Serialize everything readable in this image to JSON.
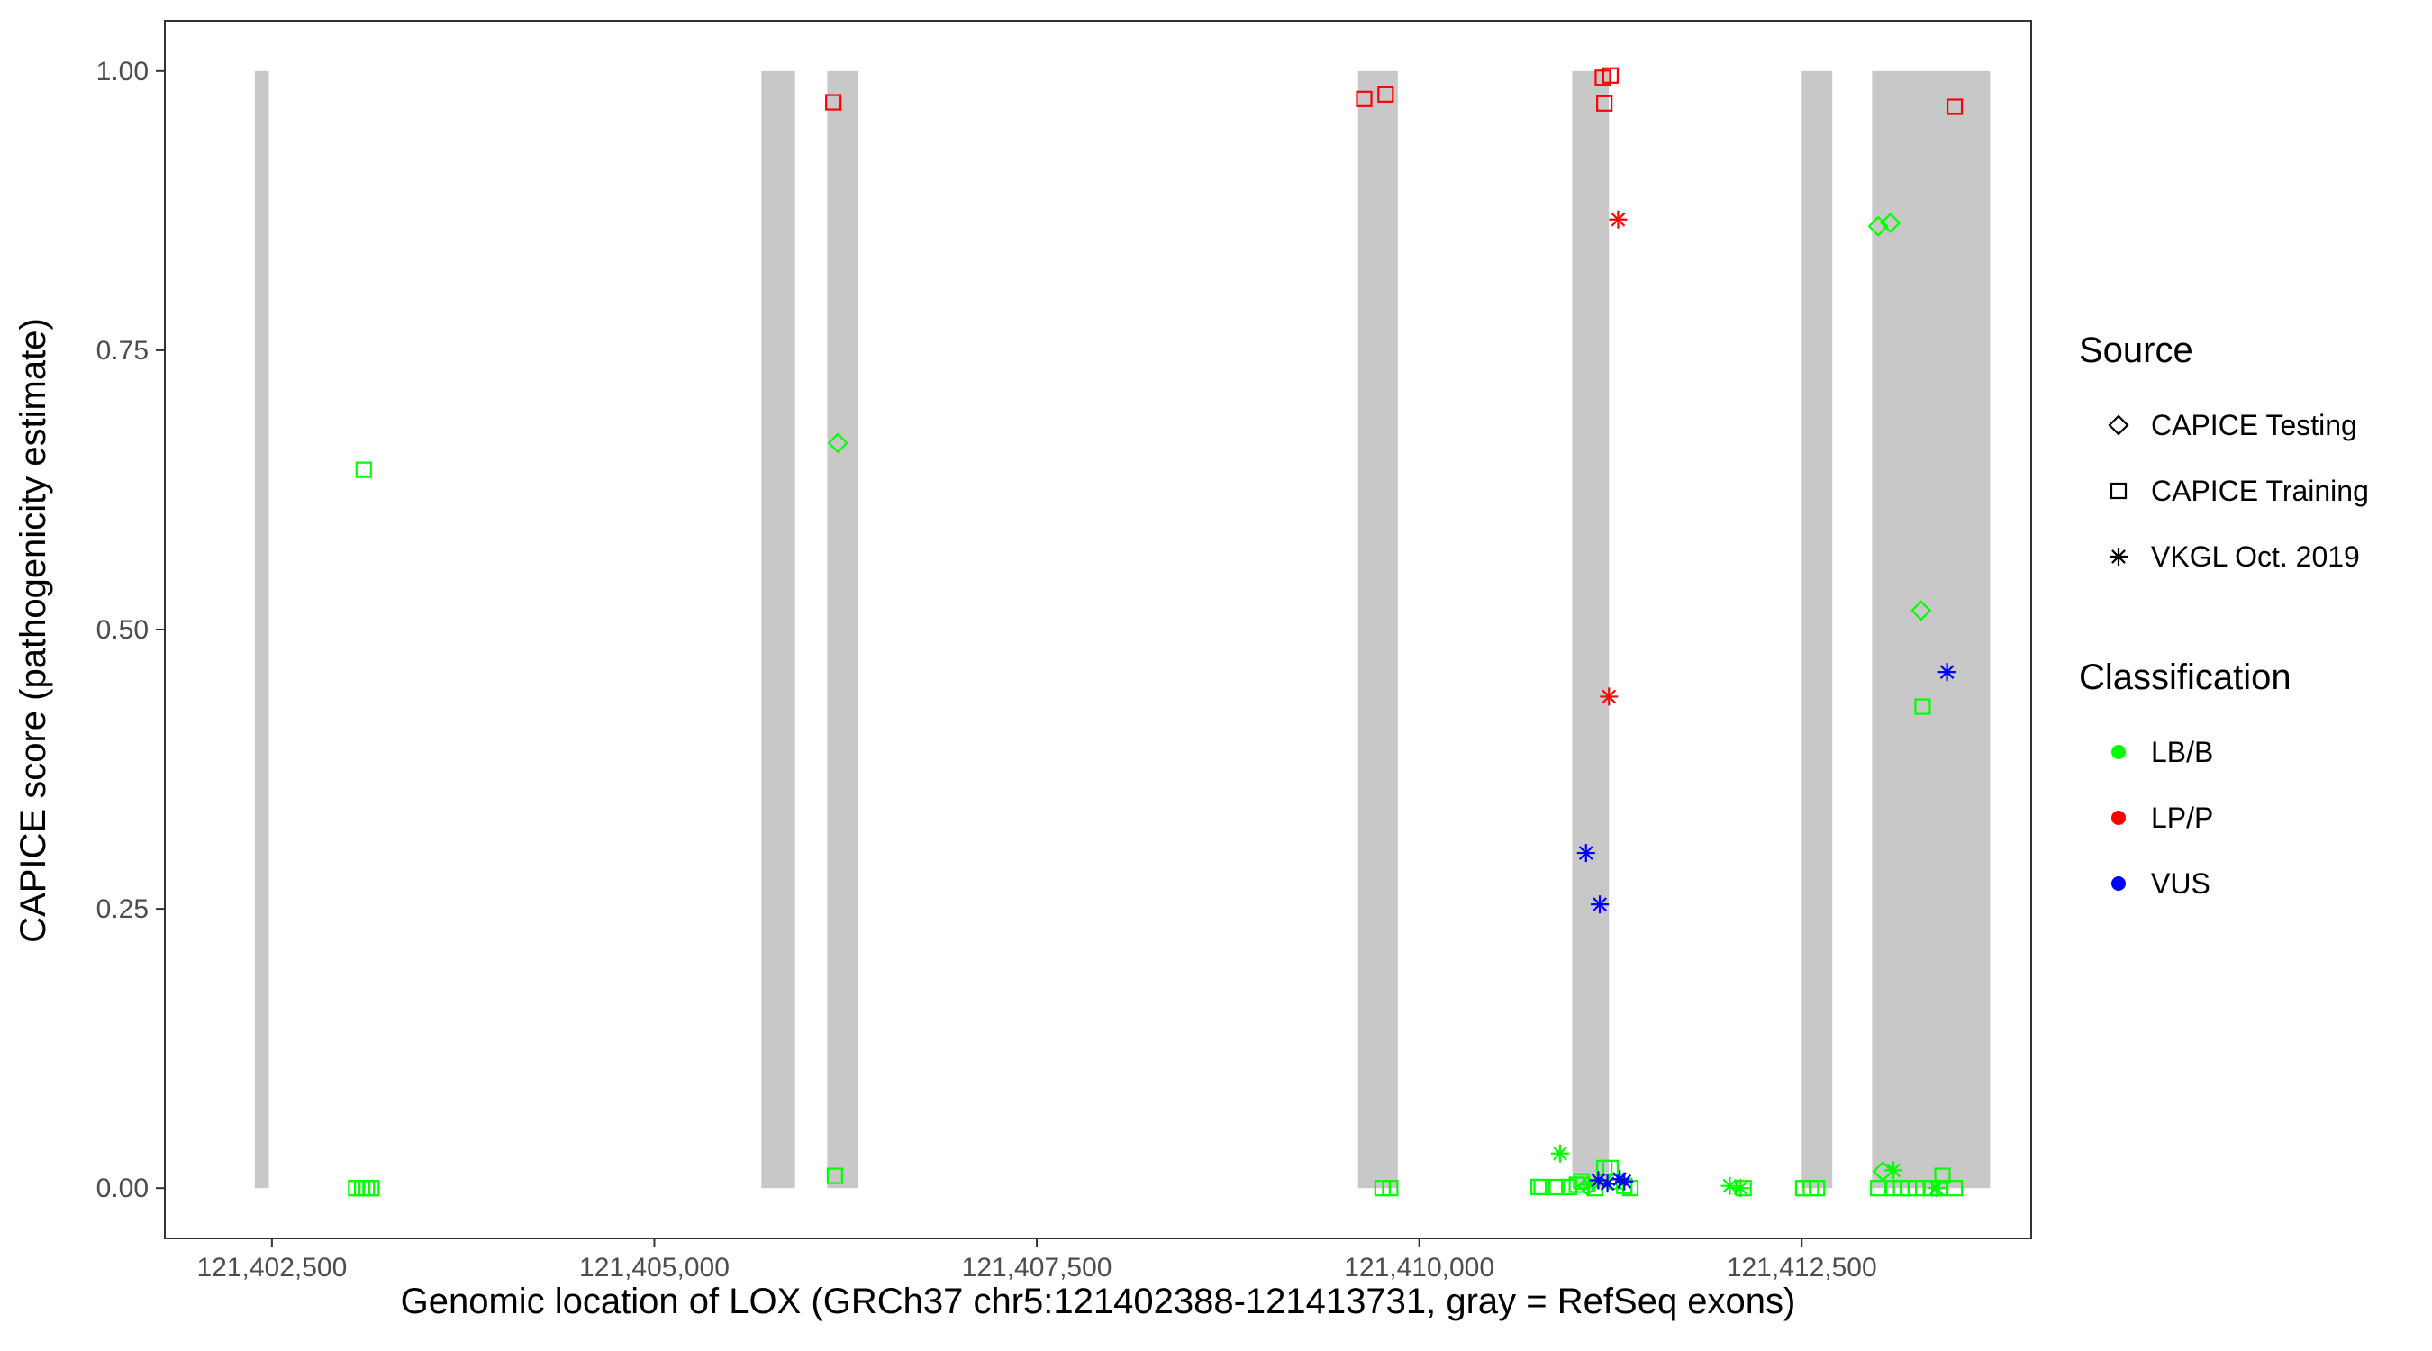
{
  "chart_data": {
    "type": "scatter",
    "title": "",
    "xlabel": "Genomic location of LOX (GRCh37 chr5:121402388-121413731, gray = RefSeq exons)",
    "ylabel": "CAPICE score (pathogenicity estimate)",
    "xlim": [
      121401800,
      121414000
    ],
    "ylim": [
      -0.045,
      1.045
    ],
    "x_ticks": [
      121402500,
      121405000,
      121407500,
      121410000,
      121412500
    ],
    "x_tick_labels": [
      "121,402,500",
      "121,405,000",
      "121,407,500",
      "121,410,000",
      "121,412,500"
    ],
    "y_ticks": [
      0,
      0.25,
      0.5,
      0.75,
      1.0
    ],
    "y_tick_labels": [
      "0.00",
      "0.25",
      "0.50",
      "0.75",
      "1.00"
    ],
    "grid": false,
    "exons": [
      [
        121402388,
        121402480
      ],
      [
        121405700,
        121405920
      ],
      [
        121406130,
        121406330
      ],
      [
        121409600,
        121409860
      ],
      [
        121411000,
        121411240
      ],
      [
        121412500,
        121412700
      ],
      [
        121412960,
        121413731
      ]
    ],
    "exon_color": "#c8c8c8",
    "legends": {
      "source": {
        "title": "Source",
        "items": [
          {
            "label": "CAPICE Testing",
            "shape": "diamond"
          },
          {
            "label": "CAPICE Training",
            "shape": "square"
          },
          {
            "label": "VKGL Oct. 2019",
            "shape": "asterisk"
          }
        ]
      },
      "classification": {
        "title": "Classification",
        "items": [
          {
            "label": "LB/B",
            "color": "#00ff00"
          },
          {
            "label": "LP/P",
            "color": "#ff0000"
          },
          {
            "label": "VUS",
            "color": "#0000ff"
          }
        ]
      }
    },
    "points": [
      {
        "x": 121403100,
        "y": 0.643,
        "shape": "square",
        "class": "LB/B"
      },
      {
        "x": 121403050,
        "y": 0.0,
        "shape": "square",
        "class": "LB/B"
      },
      {
        "x": 121403090,
        "y": 0.0,
        "shape": "square",
        "class": "LB/B"
      },
      {
        "x": 121403120,
        "y": 0.0,
        "shape": "square",
        "class": "LB/B"
      },
      {
        "x": 121403150,
        "y": 0.0,
        "shape": "square",
        "class": "LB/B"
      },
      {
        "x": 121406170,
        "y": 0.972,
        "shape": "square",
        "class": "LP/P"
      },
      {
        "x": 121406200,
        "y": 0.667,
        "shape": "diamond",
        "class": "LB/B"
      },
      {
        "x": 121406180,
        "y": 0.011,
        "shape": "square",
        "class": "LB/B"
      },
      {
        "x": 121409640,
        "y": 0.975,
        "shape": "square",
        "class": "LP/P"
      },
      {
        "x": 121409780,
        "y": 0.979,
        "shape": "square",
        "class": "LP/P"
      },
      {
        "x": 121409760,
        "y": 0.0,
        "shape": "square",
        "class": "LB/B"
      },
      {
        "x": 121409810,
        "y": 0.0,
        "shape": "square",
        "class": "LB/B"
      },
      {
        "x": 121411200,
        "y": 0.994,
        "shape": "square",
        "class": "LP/P"
      },
      {
        "x": 121411250,
        "y": 0.996,
        "shape": "square",
        "class": "LP/P"
      },
      {
        "x": 121411210,
        "y": 0.971,
        "shape": "square",
        "class": "LP/P"
      },
      {
        "x": 121411300,
        "y": 0.867,
        "shape": "asterisk",
        "class": "LP/P"
      },
      {
        "x": 121411240,
        "y": 0.44,
        "shape": "asterisk",
        "class": "LP/P"
      },
      {
        "x": 121411090,
        "y": 0.3,
        "shape": "asterisk",
        "class": "VUS"
      },
      {
        "x": 121411180,
        "y": 0.254,
        "shape": "asterisk",
        "class": "VUS"
      },
      {
        "x": 121410920,
        "y": 0.031,
        "shape": "asterisk",
        "class": "LB/B"
      },
      {
        "x": 121410780,
        "y": 0.001,
        "shape": "square",
        "class": "LB/B"
      },
      {
        "x": 121410800,
        "y": 0.001,
        "shape": "square",
        "class": "LB/B"
      },
      {
        "x": 121410900,
        "y": 0.001,
        "shape": "square",
        "class": "LB/B"
      },
      {
        "x": 121410980,
        "y": 0.001,
        "shape": "square",
        "class": "LB/B"
      },
      {
        "x": 121411030,
        "y": 0.003,
        "shape": "square",
        "class": "LB/B"
      },
      {
        "x": 121411060,
        "y": 0.006,
        "shape": "square",
        "class": "LB/B"
      },
      {
        "x": 121411210,
        "y": 0.018,
        "shape": "square",
        "class": "LB/B"
      },
      {
        "x": 121411250,
        "y": 0.018,
        "shape": "square",
        "class": "LB/B"
      },
      {
        "x": 121411290,
        "y": 0.006,
        "shape": "square",
        "class": "LB/B"
      },
      {
        "x": 121411340,
        "y": 0.002,
        "shape": "square",
        "class": "LB/B"
      },
      {
        "x": 121411380,
        "y": 0.0,
        "shape": "square",
        "class": "LB/B"
      },
      {
        "x": 121411150,
        "y": 0.0,
        "shape": "square",
        "class": "LB/B"
      },
      {
        "x": 121411110,
        "y": 0.003,
        "shape": "asterisk",
        "class": "LB/B"
      },
      {
        "x": 121411100,
        "y": 0.002,
        "shape": "diamond",
        "class": "LB/B"
      },
      {
        "x": 121411170,
        "y": 0.007,
        "shape": "asterisk",
        "class": "VUS"
      },
      {
        "x": 121411230,
        "y": 0.004,
        "shape": "asterisk",
        "class": "VUS"
      },
      {
        "x": 121411310,
        "y": 0.008,
        "shape": "asterisk",
        "class": "VUS"
      },
      {
        "x": 121411340,
        "y": 0.006,
        "shape": "asterisk",
        "class": "VUS"
      },
      {
        "x": 121412030,
        "y": 0.002,
        "shape": "asterisk",
        "class": "LB/B"
      },
      {
        "x": 121412100,
        "y": 0.0,
        "shape": "asterisk",
        "class": "LB/B"
      },
      {
        "x": 121412120,
        "y": 0.0,
        "shape": "square",
        "class": "LB/B"
      },
      {
        "x": 121412510,
        "y": 0.0,
        "shape": "square",
        "class": "LB/B"
      },
      {
        "x": 121412560,
        "y": 0.0,
        "shape": "square",
        "class": "LB/B"
      },
      {
        "x": 121412600,
        "y": 0.0,
        "shape": "square",
        "class": "LB/B"
      },
      {
        "x": 121413000,
        "y": 0.861,
        "shape": "diamond",
        "class": "LB/B"
      },
      {
        "x": 121413080,
        "y": 0.864,
        "shape": "diamond",
        "class": "LB/B"
      },
      {
        "x": 121413280,
        "y": 0.517,
        "shape": "diamond",
        "class": "LB/B"
      },
      {
        "x": 121413290,
        "y": 0.431,
        "shape": "square",
        "class": "LB/B"
      },
      {
        "x": 121413450,
        "y": 0.462,
        "shape": "asterisk",
        "class": "VUS"
      },
      {
        "x": 121413500,
        "y": 0.968,
        "shape": "square",
        "class": "LP/P"
      },
      {
        "x": 121413030,
        "y": 0.015,
        "shape": "diamond",
        "class": "LB/B"
      },
      {
        "x": 121413100,
        "y": 0.016,
        "shape": "asterisk",
        "class": "LB/B"
      },
      {
        "x": 121413420,
        "y": 0.011,
        "shape": "square",
        "class": "LB/B"
      },
      {
        "x": 121413000,
        "y": 0.0,
        "shape": "square",
        "class": "LB/B"
      },
      {
        "x": 121413100,
        "y": 0.0,
        "shape": "square",
        "class": "LB/B"
      },
      {
        "x": 121413150,
        "y": 0.0,
        "shape": "square",
        "class": "LB/B"
      },
      {
        "x": 121413200,
        "y": 0.0,
        "shape": "square",
        "class": "LB/B"
      },
      {
        "x": 121413250,
        "y": 0.0,
        "shape": "square",
        "class": "LB/B"
      },
      {
        "x": 121413350,
        "y": 0.0,
        "shape": "square",
        "class": "LB/B"
      },
      {
        "x": 121413400,
        "y": 0.0,
        "shape": "square",
        "class": "LB/B"
      },
      {
        "x": 121413500,
        "y": 0.0,
        "shape": "square",
        "class": "LB/B"
      },
      {
        "x": 121413380,
        "y": 0.0,
        "shape": "asterisk",
        "class": "LB/B"
      }
    ]
  }
}
